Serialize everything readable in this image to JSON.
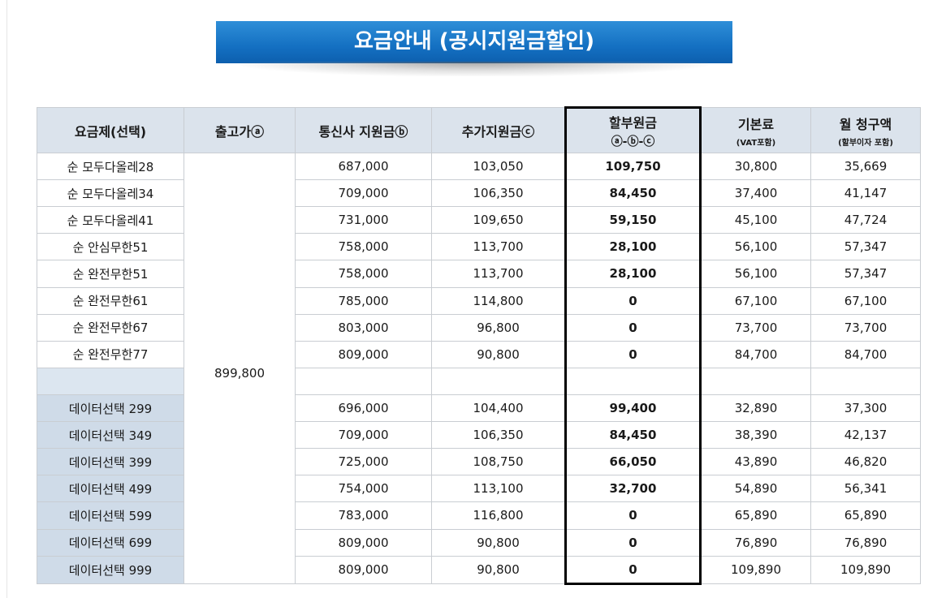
{
  "title": "요금안내 (공시지원금할인)",
  "headers": {
    "plan": "요금제(선택)",
    "release_price": "출고가ⓐ",
    "carrier_subsidy": "통신사 지원금ⓑ",
    "extra_subsidy": "추가지원금ⓒ",
    "installment": "할부원금",
    "installment_formula": "ⓐ-ⓑ-ⓒ",
    "base_fee": "기본료",
    "base_fee_note": "(VAT포함)",
    "monthly": "월 청구액",
    "monthly_note": "(할부이자 포함)"
  },
  "release_price": "899,800",
  "rows": [
    {
      "plan": "순 모두다올레28",
      "carrier": "687,000",
      "extra": "103,050",
      "installment": "109,750",
      "base": "30,800",
      "monthly": "35,669"
    },
    {
      "plan": "순 모두다올레34",
      "carrier": "709,000",
      "extra": "106,350",
      "installment": "84,450",
      "base": "37,400",
      "monthly": "41,147"
    },
    {
      "plan": "순 모두다올레41",
      "carrier": "731,000",
      "extra": "109,650",
      "installment": "59,150",
      "base": "45,100",
      "monthly": "47,724"
    },
    {
      "plan": "순 안심무한51",
      "carrier": "758,000",
      "extra": "113,700",
      "installment": "28,100",
      "base": "56,100",
      "monthly": "57,347"
    },
    {
      "plan": "순 완전무한51",
      "carrier": "758,000",
      "extra": "113,700",
      "installment": "28,100",
      "base": "56,100",
      "monthly": "57,347"
    },
    {
      "plan": "순 완전무한61",
      "carrier": "785,000",
      "extra": "114,800",
      "installment": "0",
      "base": "67,100",
      "monthly": "67,100"
    },
    {
      "plan": "순 완전무한67",
      "carrier": "803,000",
      "extra": "96,800",
      "installment": "0",
      "base": "73,700",
      "monthly": "73,700"
    },
    {
      "plan": "순 완전무한77",
      "carrier": "809,000",
      "extra": "90,800",
      "installment": "0",
      "base": "84,700",
      "monthly": "84,700"
    },
    {
      "plan": "",
      "carrier": "",
      "extra": "",
      "installment": "",
      "base": "",
      "monthly": ""
    },
    {
      "plan": "데이터선택 299",
      "carrier": "696,000",
      "extra": "104,400",
      "installment": "99,400",
      "base": "32,890",
      "monthly": "37,300"
    },
    {
      "plan": "데이터선택 349",
      "carrier": "709,000",
      "extra": "106,350",
      "installment": "84,450",
      "base": "38,390",
      "monthly": "42,137"
    },
    {
      "plan": "데이터선택 399",
      "carrier": "725,000",
      "extra": "108,750",
      "installment": "66,050",
      "base": "43,890",
      "monthly": "46,820"
    },
    {
      "plan": "데이터선택 499",
      "carrier": "754,000",
      "extra": "113,100",
      "installment": "32,700",
      "base": "54,890",
      "monthly": "56,341"
    },
    {
      "plan": "데이터선택 599",
      "carrier": "783,000",
      "extra": "116,800",
      "installment": "0",
      "base": "65,890",
      "monthly": "65,890"
    },
    {
      "plan": "데이터선택 699",
      "carrier": "809,000",
      "extra": "90,800",
      "installment": "0",
      "base": "76,890",
      "monthly": "76,890"
    },
    {
      "plan": "데이터선택 999",
      "carrier": "809,000",
      "extra": "90,800",
      "installment": "0",
      "base": "109,890",
      "monthly": "109,890"
    }
  ],
  "colors": {
    "banner": "#1470c2",
    "header_bg": "#dbe3ec",
    "plan_bg": "#dce6f0",
    "highlight": "#ffff00"
  }
}
